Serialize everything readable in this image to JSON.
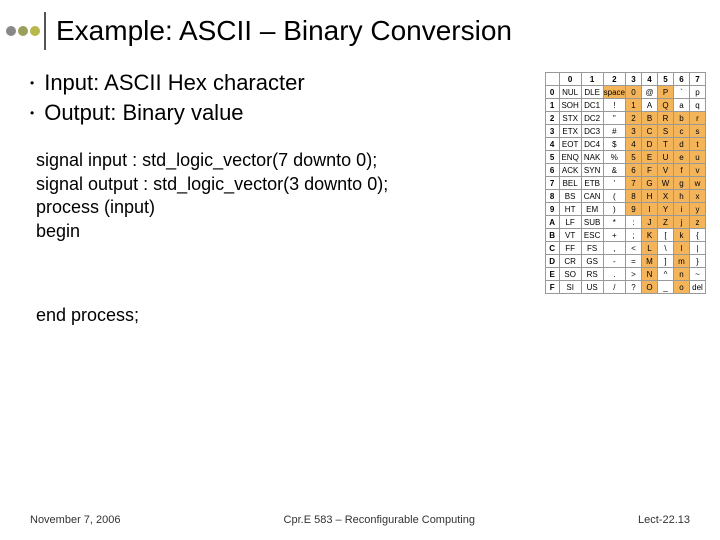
{
  "title": "Example: ASCII – Binary Conversion",
  "dots": [
    "#888888",
    "#9aa05a",
    "#b7b74a"
  ],
  "vline_color": "#555555",
  "bullets": [
    "Input: ASCII Hex character",
    "Output: Binary value"
  ],
  "code_lines": [
    "signal input : std_logic_vector(7 downto 0);",
    "signal output : std_logic_vector(3 downto 0);",
    "process (input)",
    "begin"
  ],
  "end_process": "end process;",
  "footer": {
    "left": "November 7, 2006",
    "center": "Cpr.E 583 – Reconfigurable Computing",
    "right": "Lect-22.13"
  },
  "ascii_table": {
    "highlight_color": "#f4b45a",
    "col_headers": [
      "0",
      "1",
      "2",
      "3",
      "4",
      "5",
      "6",
      "7"
    ],
    "row_headers": [
      "0",
      "1",
      "2",
      "3",
      "4",
      "5",
      "6",
      "7",
      "8",
      "9",
      "A",
      "B",
      "C",
      "D",
      "E",
      "F"
    ],
    "rows": [
      [
        "NUL",
        "DLE",
        "space",
        "0",
        "@",
        "P",
        "`",
        "p"
      ],
      [
        "SOH",
        "DC1",
        "!",
        "1",
        "A",
        "Q",
        "a",
        "q"
      ],
      [
        "STX",
        "DC2",
        "\"",
        "2",
        "B",
        "R",
        "b",
        "r"
      ],
      [
        "ETX",
        "DC3",
        "#",
        "3",
        "C",
        "S",
        "c",
        "s"
      ],
      [
        "EOT",
        "DC4",
        "$",
        "4",
        "D",
        "T",
        "d",
        "t"
      ],
      [
        "ENQ",
        "NAK",
        "%",
        "5",
        "E",
        "U",
        "e",
        "u"
      ],
      [
        "ACK",
        "SYN",
        "&",
        "6",
        "F",
        "V",
        "f",
        "v"
      ],
      [
        "BEL",
        "ETB",
        "'",
        "7",
        "G",
        "W",
        "g",
        "w"
      ],
      [
        "BS",
        "CAN",
        "(",
        "8",
        "H",
        "X",
        "h",
        "x"
      ],
      [
        "HT",
        "EM",
        ")",
        "9",
        "I",
        "Y",
        "i",
        "y"
      ],
      [
        "LF",
        "SUB",
        "*",
        ":",
        "J",
        "Z",
        "j",
        "z"
      ],
      [
        "VT",
        "ESC",
        "+",
        ";",
        "K",
        "[",
        "k",
        "{"
      ],
      [
        "FF",
        "FS",
        ",",
        "<",
        "L",
        "\\",
        "l",
        "|"
      ],
      [
        "CR",
        "GS",
        "-",
        "=",
        "M",
        "]",
        "m",
        "}"
      ],
      [
        "SO",
        "RS",
        ".",
        ">",
        "N",
        "^",
        "n",
        "~"
      ],
      [
        "SI",
        "US",
        "/",
        "?",
        "O",
        "_",
        "o",
        "del"
      ]
    ],
    "highlights": [
      [
        0,
        2
      ],
      [
        0,
        3
      ],
      [
        0,
        5
      ],
      [
        1,
        3
      ],
      [
        1,
        5
      ],
      [
        2,
        3
      ],
      [
        2,
        4
      ],
      [
        2,
        5
      ],
      [
        2,
        6
      ],
      [
        2,
        7
      ],
      [
        3,
        3
      ],
      [
        3,
        4
      ],
      [
        3,
        5
      ],
      [
        3,
        6
      ],
      [
        3,
        7
      ],
      [
        4,
        3
      ],
      [
        4,
        4
      ],
      [
        4,
        5
      ],
      [
        4,
        6
      ],
      [
        4,
        7
      ],
      [
        5,
        3
      ],
      [
        5,
        4
      ],
      [
        5,
        5
      ],
      [
        5,
        6
      ],
      [
        5,
        7
      ],
      [
        6,
        3
      ],
      [
        6,
        4
      ],
      [
        6,
        5
      ],
      [
        6,
        6
      ],
      [
        6,
        7
      ],
      [
        7,
        3
      ],
      [
        7,
        4
      ],
      [
        7,
        5
      ],
      [
        7,
        6
      ],
      [
        7,
        7
      ],
      [
        8,
        3
      ],
      [
        8,
        4
      ],
      [
        8,
        5
      ],
      [
        8,
        6
      ],
      [
        8,
        7
      ],
      [
        9,
        3
      ],
      [
        9,
        4
      ],
      [
        9,
        5
      ],
      [
        9,
        6
      ],
      [
        9,
        7
      ],
      [
        10,
        4
      ],
      [
        10,
        5
      ],
      [
        10,
        6
      ],
      [
        10,
        7
      ],
      [
        11,
        4
      ],
      [
        11,
        6
      ],
      [
        12,
        4
      ],
      [
        12,
        6
      ],
      [
        13,
        4
      ],
      [
        13,
        6
      ],
      [
        14,
        4
      ],
      [
        14,
        6
      ],
      [
        15,
        4
      ],
      [
        15,
        6
      ]
    ]
  }
}
